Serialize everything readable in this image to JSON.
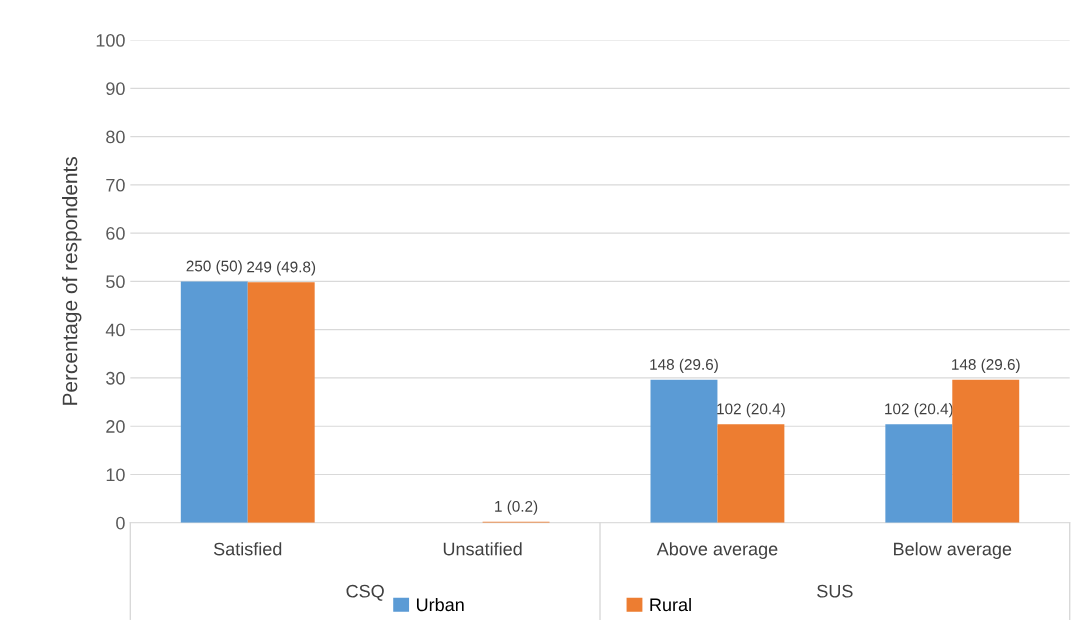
{
  "chart_data": {
    "type": "bar",
    "ylabel": "Percentage of respondents",
    "categories": [
      "Satisfied",
      "Unsatified",
      "Above average",
      "Below average"
    ],
    "series": [
      {
        "name": "Urban",
        "color": "#5b9bd5",
        "values": [
          50,
          0,
          29.6,
          20.4
        ],
        "value_labels": [
          "250 (50)",
          null,
          "148 (29.6)",
          "102 (20.4)"
        ]
      },
      {
        "name": "Rural",
        "color": "#ed7d31",
        "values": [
          49.8,
          0.2,
          20.4,
          29.6
        ],
        "value_labels": [
          "249 (49.8)",
          "1 (0.2)",
          "102 (20.4)",
          "148 (29.6)"
        ]
      }
    ],
    "annotations": [
      "CSQ",
      "SUS"
    ],
    "ylim": [
      0,
      100
    ],
    "yticks": [
      0,
      10,
      20,
      30,
      40,
      50,
      60,
      70,
      80,
      90,
      100
    ],
    "grid": "y",
    "legend": "bottom"
  }
}
